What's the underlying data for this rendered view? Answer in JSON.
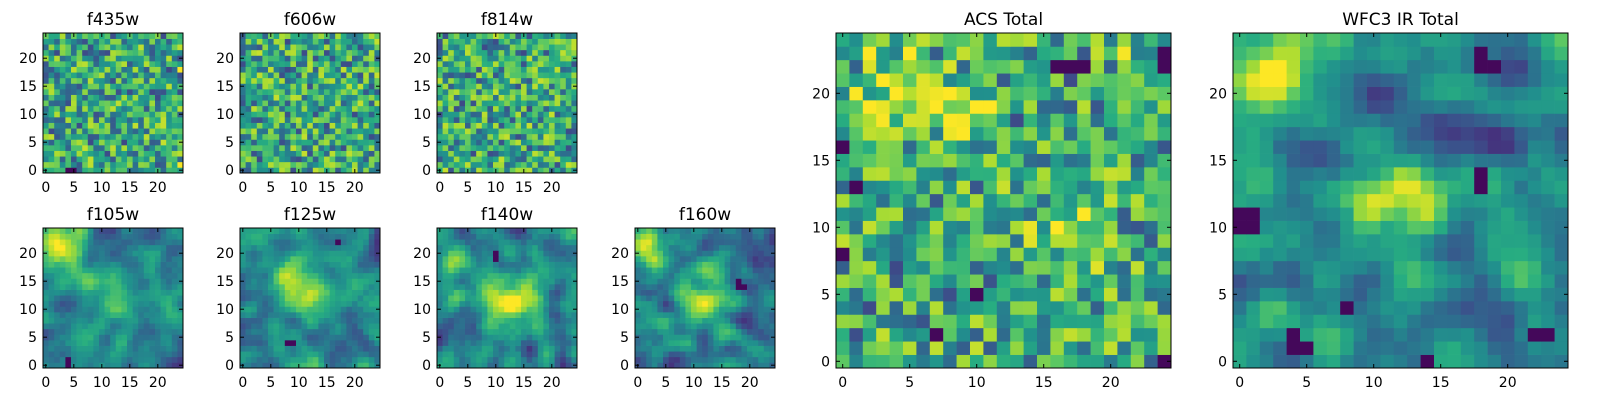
{
  "chart_data": [
    {
      "id": "f435w",
      "type": "heatmap",
      "title": "f435w",
      "grid_size": 25,
      "xlim": [
        0,
        25
      ],
      "ylim": [
        0,
        25
      ],
      "x_ticks": [
        0,
        5,
        10,
        15,
        20
      ],
      "y_ticks": [
        0,
        5,
        10,
        15,
        20
      ],
      "colormap": "viridis",
      "texture": "noise",
      "seed": 11,
      "blobs": [],
      "dark_cells": [
        [
          4,
          0
        ],
        [
          5,
          0
        ]
      ],
      "bright_cells": [
        [
          24,
          1
        ],
        [
          24,
          18
        ]
      ]
    },
    {
      "id": "f606w",
      "type": "heatmap",
      "title": "f606w",
      "grid_size": 25,
      "xlim": [
        0,
        25
      ],
      "ylim": [
        0,
        25
      ],
      "x_ticks": [
        0,
        5,
        10,
        15,
        20
      ],
      "y_ticks": [
        0,
        5,
        10,
        15,
        20
      ],
      "colormap": "viridis",
      "texture": "noise",
      "seed": 23,
      "blobs": [],
      "dark_cells": [],
      "bright_cells": []
    },
    {
      "id": "f814w",
      "type": "heatmap",
      "title": "f814w",
      "grid_size": 25,
      "xlim": [
        0,
        25
      ],
      "ylim": [
        0,
        25
      ],
      "x_ticks": [
        0,
        5,
        10,
        15,
        20
      ],
      "y_ticks": [
        0,
        5,
        10,
        15,
        20
      ],
      "colormap": "viridis",
      "texture": "noise",
      "seed": 37,
      "blobs": [],
      "dark_cells": [],
      "bright_cells": []
    },
    {
      "id": "f105w",
      "type": "heatmap",
      "title": "f105w",
      "grid_size": 25,
      "xlim": [
        0,
        25
      ],
      "ylim": [
        0,
        25
      ],
      "x_ticks": [
        0,
        5,
        10,
        15,
        20
      ],
      "y_ticks": [
        0,
        5,
        10,
        15,
        20
      ],
      "colormap": "viridis",
      "texture": "smooth",
      "seed": 41,
      "blobs": [
        [
          2,
          21,
          2.5,
          0.5
        ],
        [
          13,
          12,
          3,
          0.3
        ]
      ],
      "dark_cells": [
        [
          4,
          0
        ],
        [
          4,
          1
        ]
      ],
      "bright_cells": []
    },
    {
      "id": "f125w",
      "type": "heatmap",
      "title": "f125w",
      "grid_size": 25,
      "xlim": [
        0,
        25
      ],
      "ylim": [
        0,
        25
      ],
      "x_ticks": [
        0,
        5,
        10,
        15,
        20
      ],
      "y_ticks": [
        0,
        5,
        10,
        15,
        20
      ],
      "colormap": "viridis",
      "texture": "smooth",
      "seed": 53,
      "blobs": [
        [
          8,
          16,
          2.5,
          0.4
        ],
        [
          13,
          12,
          3,
          0.3
        ]
      ],
      "dark_cells": [
        [
          8,
          4
        ],
        [
          9,
          4
        ],
        [
          17,
          22
        ]
      ],
      "bright_cells": []
    },
    {
      "id": "f140w",
      "type": "heatmap",
      "title": "f140w",
      "grid_size": 25,
      "xlim": [
        0,
        25
      ],
      "ylim": [
        0,
        25
      ],
      "x_ticks": [
        0,
        5,
        10,
        15,
        20
      ],
      "y_ticks": [
        0,
        5,
        10,
        15,
        20
      ],
      "colormap": "viridis",
      "texture": "smooth",
      "seed": 67,
      "blobs": [
        [
          13,
          12,
          3.5,
          0.45
        ],
        [
          3,
          19,
          2,
          0.3
        ]
      ],
      "dark_cells": [
        [
          10,
          20
        ],
        [
          10,
          19
        ]
      ],
      "bright_cells": []
    },
    {
      "id": "f160w",
      "type": "heatmap",
      "title": "f160w",
      "grid_size": 25,
      "xlim": [
        0,
        25
      ],
      "ylim": [
        0,
        25
      ],
      "x_ticks": [
        0,
        5,
        10,
        15,
        20
      ],
      "y_ticks": [
        0,
        5,
        10,
        15,
        20
      ],
      "colormap": "viridis",
      "texture": "smooth",
      "seed": 71,
      "blobs": [
        [
          2,
          21,
          2.5,
          0.5
        ],
        [
          13,
          12,
          2.5,
          0.4
        ]
      ],
      "dark_cells": [
        [
          18,
          15
        ],
        [
          18,
          14
        ],
        [
          19,
          14
        ]
      ],
      "bright_cells": []
    },
    {
      "id": "acs-total",
      "type": "heatmap",
      "title": "ACS Total",
      "grid_size": 25,
      "xlim": [
        0,
        25
      ],
      "ylim": [
        0,
        25
      ],
      "x_ticks": [
        0,
        5,
        10,
        15,
        20
      ],
      "y_ticks": [
        0,
        5,
        10,
        15,
        20
      ],
      "colormap": "viridis",
      "texture": "noise",
      "seed": 83,
      "blobs": [
        [
          9,
          18,
          1.5,
          0.35
        ],
        [
          17,
          10,
          2,
          0.3
        ],
        [
          4,
          21,
          2,
          0.3
        ]
      ],
      "dark_cells": [
        [
          16,
          22
        ],
        [
          17,
          22
        ],
        [
          18,
          22
        ],
        [
          24,
          22
        ],
        [
          24,
          23
        ],
        [
          0,
          16
        ],
        [
          1,
          13
        ],
        [
          0,
          8
        ],
        [
          10,
          5
        ],
        [
          7,
          2
        ],
        [
          24,
          0
        ]
      ],
      "bright_cells": [
        [
          21,
          23
        ]
      ]
    },
    {
      "id": "wfc3-ir-total",
      "type": "heatmap",
      "title": "WFC3 IR Total",
      "grid_size": 25,
      "xlim": [
        0,
        25
      ],
      "ylim": [
        0,
        25
      ],
      "x_ticks": [
        0,
        5,
        10,
        15,
        20
      ],
      "y_ticks": [
        0,
        5,
        10,
        15,
        20
      ],
      "colormap": "viridis",
      "texture": "smooth",
      "seed": 97,
      "blobs": [
        [
          2,
          21,
          2.5,
          0.55
        ],
        [
          12.5,
          12.5,
          2.2,
          0.5
        ]
      ],
      "dark_cells": [
        [
          0,
          10
        ],
        [
          0,
          11
        ],
        [
          1,
          10
        ],
        [
          1,
          11
        ],
        [
          18,
          22
        ],
        [
          18,
          23
        ],
        [
          19,
          22
        ],
        [
          18,
          13
        ],
        [
          18,
          14
        ],
        [
          4,
          2
        ],
        [
          4,
          1
        ],
        [
          5,
          1
        ],
        [
          8,
          4
        ],
        [
          14,
          0
        ],
        [
          22,
          2
        ],
        [
          23,
          2
        ]
      ],
      "bright_cells": []
    }
  ]
}
